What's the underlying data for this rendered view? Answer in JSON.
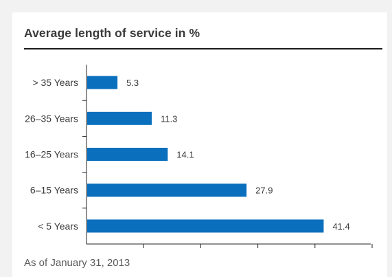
{
  "chart_data": {
    "type": "bar",
    "orientation": "horizontal",
    "title": "Average length of service in %",
    "categories": [
      "> 35 Years",
      "26–35 Years",
      "16–25 Years",
      "6–15 Years",
      "< 5 Years"
    ],
    "values": [
      5.3,
      11.3,
      14.1,
      27.9,
      41.4
    ],
    "value_labels": [
      "5.3",
      "11.3",
      "14.1",
      "27.9",
      "41.4"
    ],
    "xlim": [
      0,
      50
    ],
    "xlabel": "",
    "ylabel": "",
    "grid": false,
    "legend": "none",
    "bar_color": "#0a6fbd"
  },
  "footnote": "As of January 31, 2013"
}
